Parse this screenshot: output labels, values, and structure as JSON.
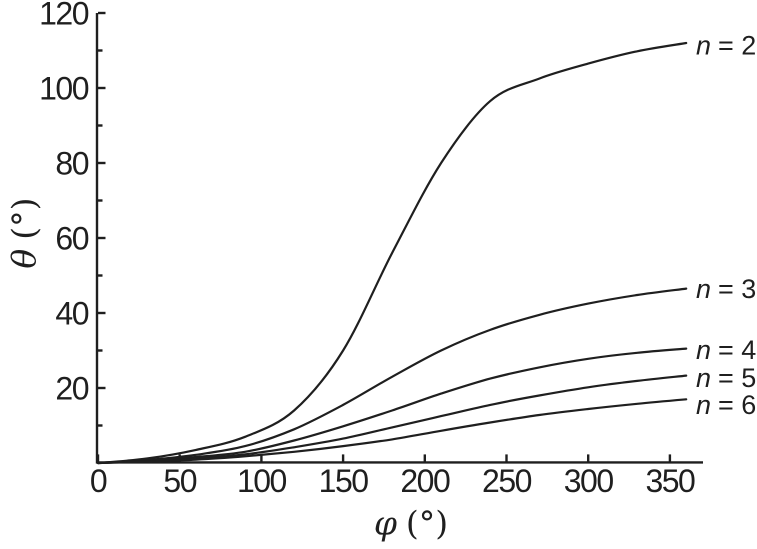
{
  "figure": {
    "background": "#ffffff",
    "ink_color": "#1f1f1f"
  },
  "chart_data": {
    "type": "line",
    "title": "",
    "xlabel_symbol": "φ",
    "xlabel_unit": "(°)",
    "ylabel_symbol": "θ",
    "ylabel_unit": "(°)",
    "xlim": [
      0,
      370
    ],
    "ylim": [
      0,
      120
    ],
    "x_major_ticks": [
      0,
      50,
      100,
      150,
      200,
      250,
      300,
      350
    ],
    "x_tick_labels": [
      "0",
      "50",
      "100",
      "150",
      "200",
      "250",
      "300",
      "350"
    ],
    "y_major_ticks": [
      20,
      40,
      60,
      80,
      100,
      120
    ],
    "y_tick_labels": [
      "20",
      "40",
      "60",
      "80",
      "100",
      "120"
    ],
    "y_minor_ticks": [
      10,
      30,
      50,
      70,
      90,
      110
    ],
    "grid": false,
    "legend_position": "inline labels at right ends of curves",
    "line_color": "#1f1f1f",
    "x": [
      0,
      30,
      60,
      90,
      120,
      150,
      180,
      210,
      240,
      270,
      300,
      330,
      360
    ],
    "series": [
      {
        "name": "n = 2",
        "label_var": "n",
        "label_rest": "= 2",
        "values": [
          0,
          1.2,
          3.5,
          7,
          14,
          30,
          56,
          80,
          96.5,
          102.5,
          106.5,
          109.8,
          112
        ]
      },
      {
        "name": "n = 3",
        "label_var": "n",
        "label_rest": "= 3",
        "values": [
          0,
          0.8,
          2.2,
          4.5,
          9,
          15.5,
          23,
          30,
          35.5,
          39.5,
          42.5,
          44.8,
          46.5
        ]
      },
      {
        "name": "n = 4",
        "label_var": "n",
        "label_rest": "= 4",
        "values": [
          0,
          0.6,
          1.6,
          3,
          6,
          9.8,
          14,
          18.5,
          22.5,
          25.5,
          27.8,
          29.4,
          30.5
        ]
      },
      {
        "name": "n = 5",
        "label_var": "n",
        "label_rest": "= 5",
        "values": [
          0,
          0.5,
          1.2,
          2.3,
          4.2,
          6.5,
          9.5,
          12.5,
          15.5,
          18,
          20.2,
          21.9,
          23.3
        ]
      },
      {
        "name": "n = 6",
        "label_var": "n",
        "label_rest": "= 6",
        "values": [
          0,
          0.4,
          0.9,
          1.8,
          3,
          4.5,
          6.3,
          8.6,
          10.8,
          12.8,
          14.4,
          15.8,
          17
        ]
      }
    ]
  }
}
